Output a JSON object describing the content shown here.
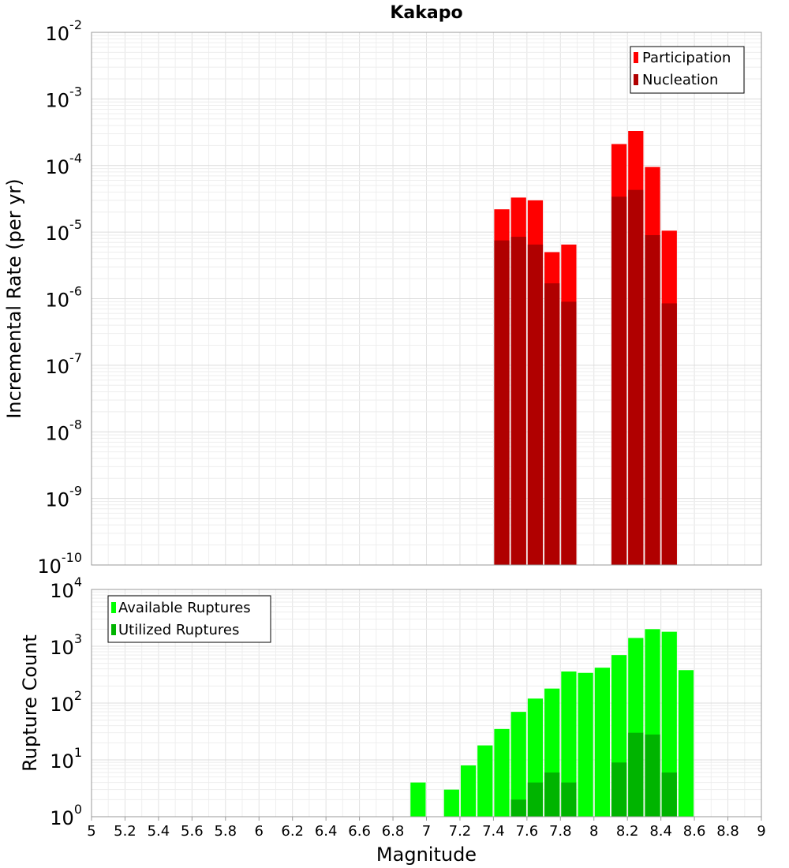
{
  "chart_data": [
    {
      "type": "bar",
      "title": "Kakapo",
      "ylabel": "Incremental Rate (per yr)",
      "xlabel": "",
      "yscale": "log",
      "ylim_exponents": [
        -10,
        -2
      ],
      "xlim": [
        5,
        9
      ],
      "bar_width": 0.1,
      "legend_position": "top-right",
      "series": [
        {
          "name": "Participation",
          "color": "#ff0000",
          "x": [
            7.45,
            7.55,
            7.65,
            7.75,
            7.85,
            8.15,
            8.25,
            8.35,
            8.45
          ],
          "values": [
            2.2e-05,
            3.3e-05,
            3e-05,
            5e-06,
            6.5e-06,
            0.00021,
            0.00033,
            9.5e-05,
            1.05e-05
          ]
        },
        {
          "name": "Nucleation",
          "color": "#b00000",
          "x": [
            7.45,
            7.55,
            7.65,
            7.75,
            7.85,
            8.15,
            8.25,
            8.35,
            8.45
          ],
          "values": [
            7.5e-06,
            8.5e-06,
            6.5e-06,
            1.7e-06,
            9e-07,
            3.4e-05,
            4.3e-05,
            9e-06,
            8.5e-07
          ]
        }
      ]
    },
    {
      "type": "bar",
      "title": "",
      "ylabel": "Rupture Count",
      "xlabel": "Magnitude",
      "yscale": "log",
      "ylim_exponents": [
        0,
        4
      ],
      "xlim": [
        5,
        9
      ],
      "bar_width": 0.1,
      "x_ticks": [
        "5",
        "5.2",
        "5.4",
        "5.6",
        "5.8",
        "6",
        "6.2",
        "6.4",
        "6.6",
        "6.8",
        "7",
        "7.2",
        "7.4",
        "7.6",
        "7.8",
        "8",
        "8.2",
        "8.4",
        "8.6",
        "8.8",
        "9"
      ],
      "legend_position": "top-left",
      "series": [
        {
          "name": "Available Ruptures",
          "color": "#00ff00",
          "x": [
            6.95,
            7.05,
            7.15,
            7.25,
            7.35,
            7.45,
            7.55,
            7.65,
            7.75,
            7.85,
            7.95,
            8.05,
            8.15,
            8.25,
            8.35,
            8.45,
            8.55
          ],
          "values": [
            4,
            1,
            3,
            8,
            18,
            35,
            70,
            120,
            180,
            360,
            340,
            420,
            700,
            1400,
            2000,
            1800,
            380
          ]
        },
        {
          "name": "Utilized Ruptures",
          "color": "#00b400",
          "x": [
            7.45,
            7.55,
            7.65,
            7.75,
            7.85,
            8.15,
            8.25,
            8.35,
            8.45
          ],
          "values": [
            1,
            2,
            4,
            6,
            4,
            9,
            30,
            28,
            6
          ]
        }
      ]
    }
  ]
}
